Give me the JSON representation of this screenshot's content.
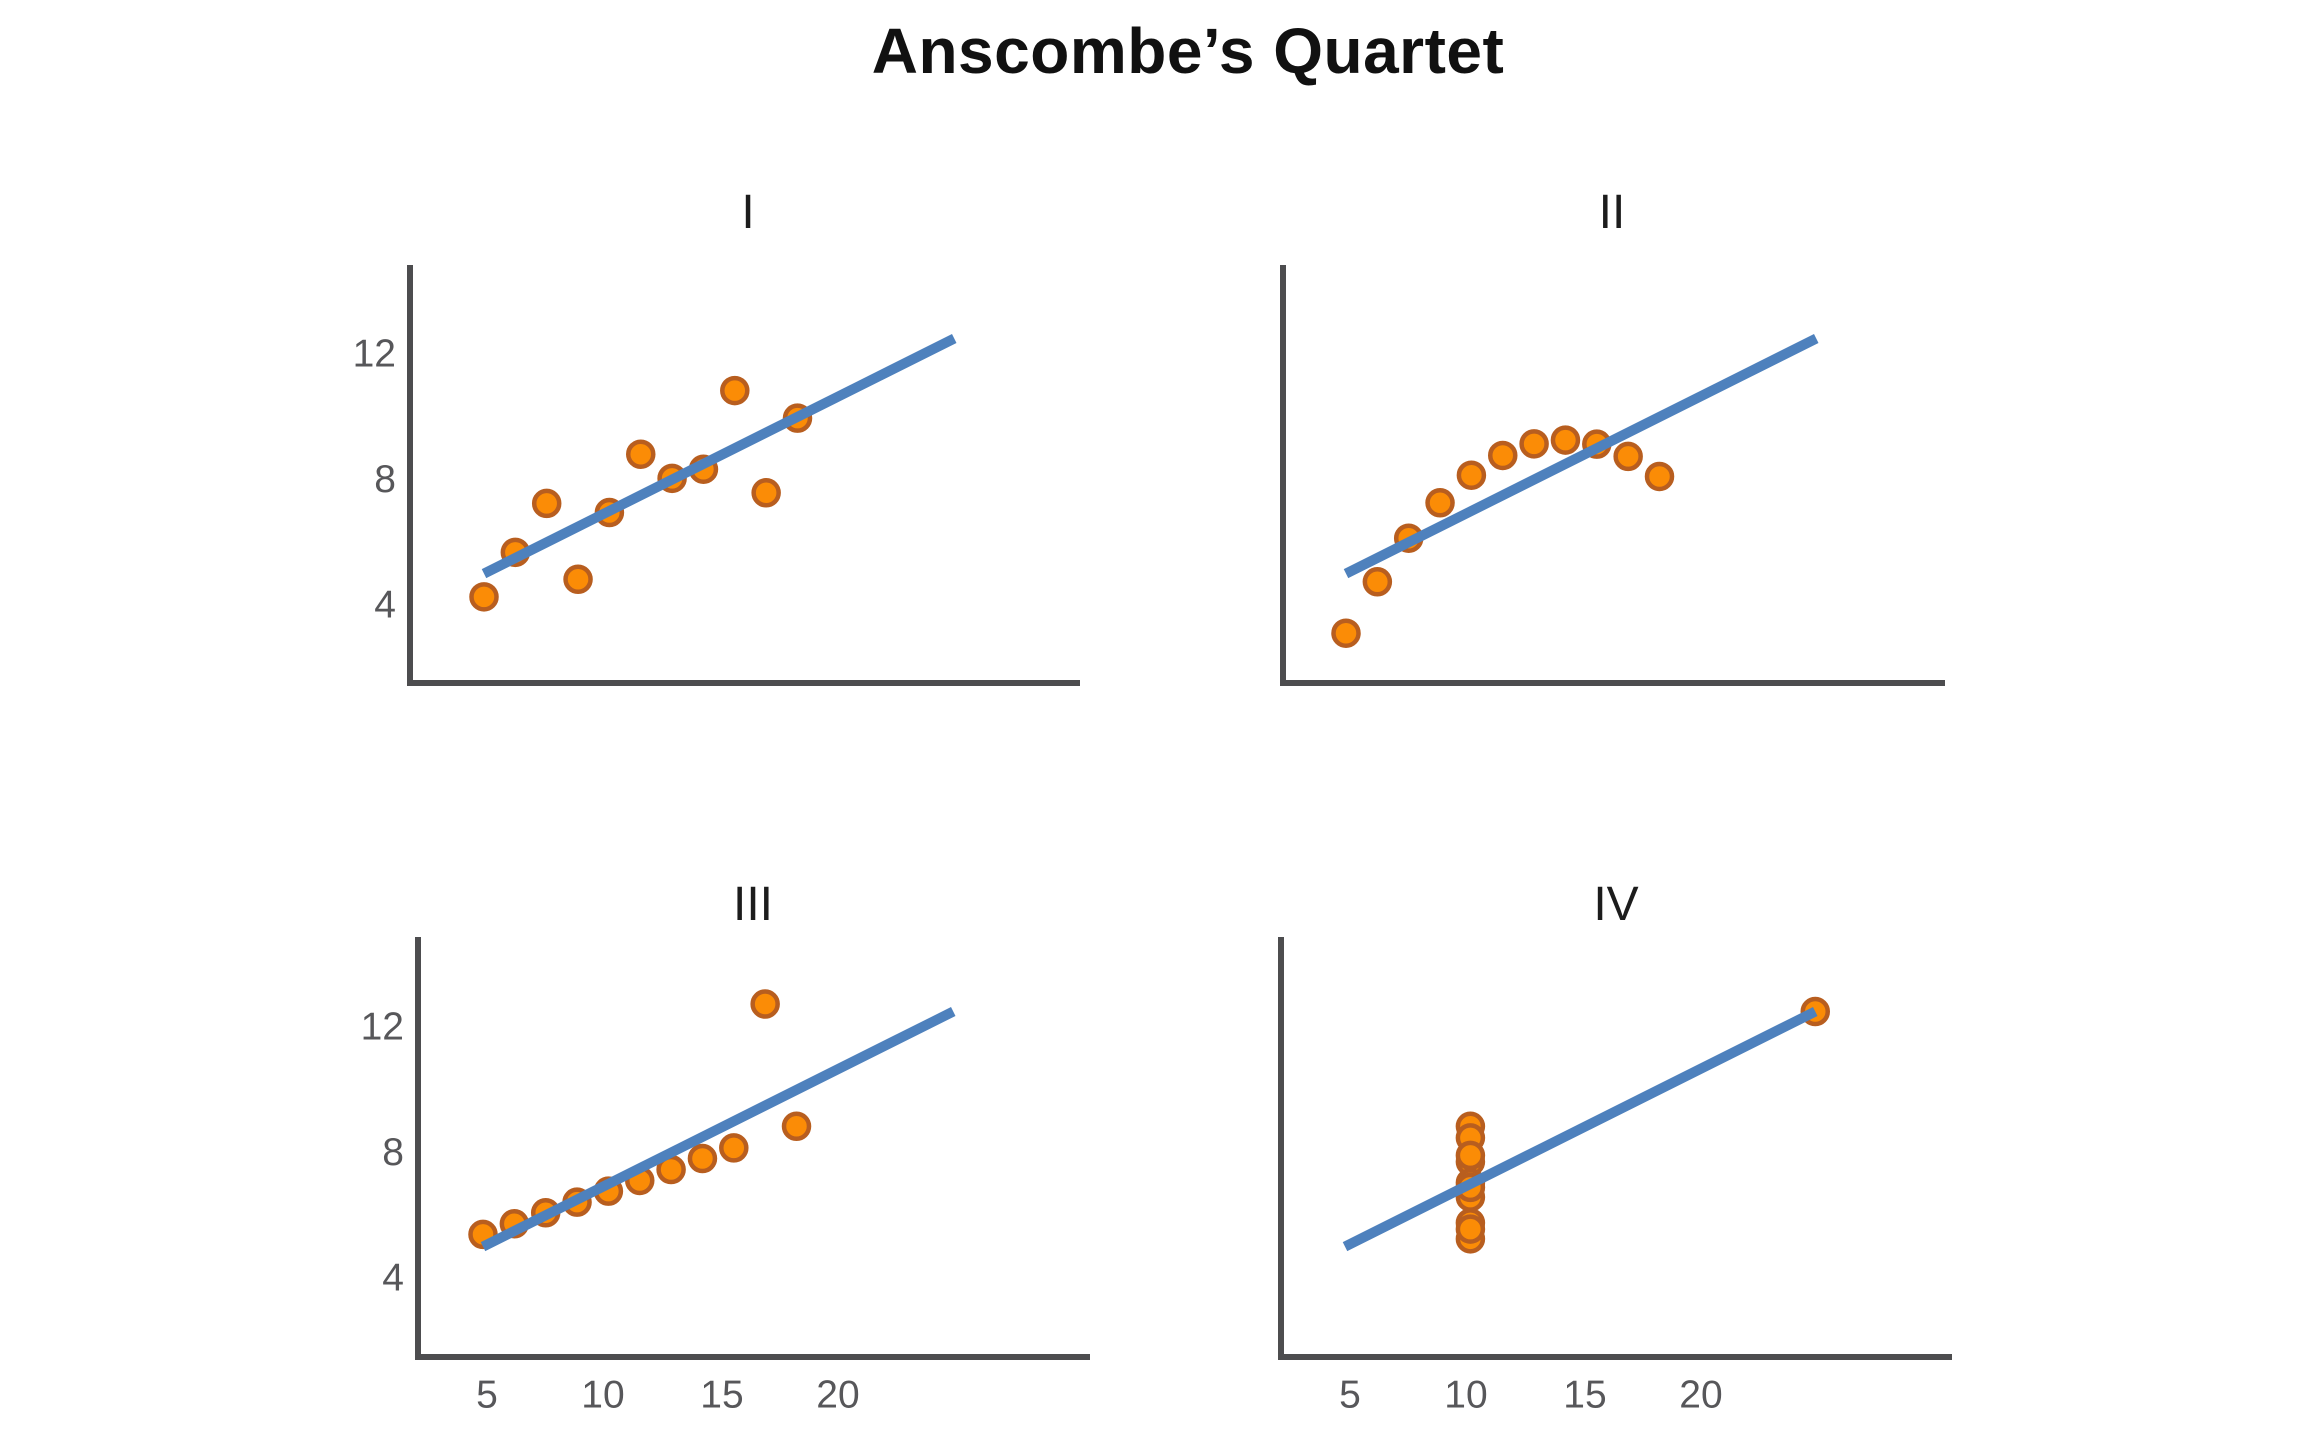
{
  "title": "Anscombe’s Quartet",
  "colors": {
    "background": "#ffffff",
    "title_text": "#111111",
    "subplot_title_text": "#1c1c1c",
    "axis": "#4d4d4f",
    "tick_label": "#57575a",
    "point_fill": "#fb8c06",
    "point_stroke": "#b85e1f",
    "regression_line": "#4e81bd"
  },
  "chart_data": [
    {
      "type": "scatter",
      "title": "I",
      "x": [
        10,
        8,
        13,
        9,
        11,
        14,
        6,
        4,
        12,
        7,
        5
      ],
      "y": [
        8.04,
        6.95,
        7.58,
        8.81,
        8.33,
        9.96,
        7.24,
        4.26,
        10.84,
        4.82,
        5.68
      ],
      "regression": {
        "slope": 0.5,
        "intercept": 3.0,
        "x_start": 4,
        "x_end": 19,
        "y_start": 5.0,
        "y_end": 12.5
      },
      "yticks": [
        12,
        8,
        4
      ],
      "xticks": [],
      "xlim": [
        1.6,
        23.0
      ],
      "ylim": [
        1.5,
        14.8
      ],
      "grid": false
    },
    {
      "type": "scatter",
      "title": "II",
      "x": [
        10,
        8,
        13,
        9,
        11,
        14,
        6,
        4,
        12,
        7,
        5
      ],
      "y": [
        9.14,
        8.14,
        8.74,
        8.77,
        9.26,
        8.1,
        6.13,
        3.1,
        9.13,
        7.26,
        4.74
      ],
      "regression": {
        "slope": 0.5,
        "intercept": 3.0,
        "x_start": 4,
        "x_end": 19,
        "y_start": 5.0,
        "y_end": 12.5
      },
      "yticks": [],
      "xticks": [],
      "xlim": [
        1.6,
        23.0
      ],
      "ylim": [
        1.5,
        14.8
      ],
      "grid": false
    },
    {
      "type": "scatter",
      "title": "III",
      "x": [
        10,
        8,
        13,
        9,
        11,
        14,
        6,
        4,
        12,
        7,
        5
      ],
      "y": [
        7.46,
        6.77,
        12.74,
        7.11,
        7.81,
        8.84,
        6.08,
        5.39,
        8.15,
        6.42,
        5.73
      ],
      "regression": {
        "slope": 0.5,
        "intercept": 3.0,
        "x_start": 4,
        "x_end": 19,
        "y_start": 5.0,
        "y_end": 12.5
      },
      "yticks": [
        12,
        8,
        4
      ],
      "xticks": [
        5,
        10,
        15,
        20
      ],
      "xlim": [
        1.9,
        23.0
      ],
      "ylim": [
        1.5,
        14.8
      ],
      "grid": false
    },
    {
      "type": "scatter",
      "title": "IV",
      "x": [
        8,
        8,
        8,
        8,
        8,
        8,
        8,
        19,
        8,
        8,
        8
      ],
      "y": [
        6.58,
        5.76,
        7.71,
        8.84,
        8.47,
        7.04,
        5.25,
        12.5,
        5.56,
        7.91,
        6.89
      ],
      "regression": {
        "slope": 0.5,
        "intercept": 3.0,
        "x_start": 4,
        "x_end": 19,
        "y_start": 5.0,
        "y_end": 12.5
      },
      "yticks": [],
      "xticks": [
        5,
        10,
        15,
        20
      ],
      "xlim": [
        1.9,
        23.0
      ],
      "ylim": [
        1.5,
        14.8
      ],
      "grid": false
    }
  ],
  "legend": null
}
